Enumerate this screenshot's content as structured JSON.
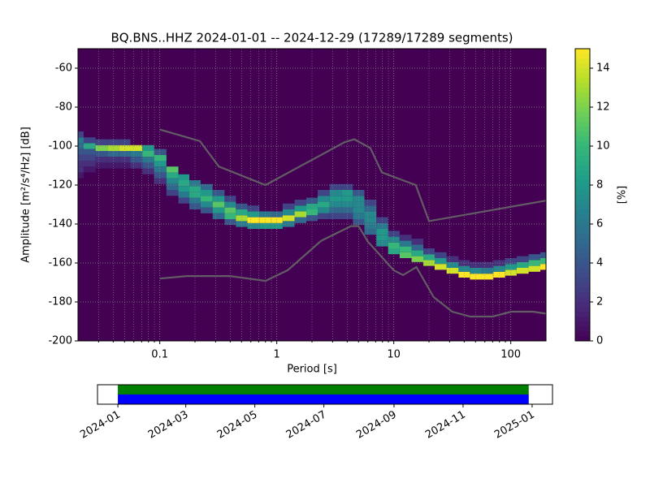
{
  "chart_data": [
    {
      "type": "ppsd",
      "title": "BQ.BNS..HHZ   2024-01-01 -- 2024-12-29  (17289/17289 segments)",
      "x_label": "Period [s]",
      "y_label": "Amplitude [m²/s⁴/Hz] [dB]",
      "xlim": [
        0.02,
        200
      ],
      "log_x": true,
      "xticks": [
        0.1,
        1,
        10,
        100
      ],
      "ylim": [
        -200,
        -50
      ],
      "yticks": [
        -200,
        -180,
        -160,
        -140,
        -120,
        -100,
        -80,
        -60
      ],
      "grid": true,
      "minor_grid": true,
      "colorbar": {
        "label": "[%]",
        "lim": [
          0,
          15
        ],
        "ticks": [
          0,
          2,
          4,
          6,
          8,
          10,
          12,
          14
        ],
        "colormap": "viridis"
      },
      "columns": [
        {
          "period": 0.02,
          "db": [
            -115,
            -112,
            -109,
            -106,
            -103,
            -100,
            -97,
            -94
          ],
          "percent": [
            1,
            2,
            2,
            3,
            4,
            5,
            6,
            3
          ]
        },
        {
          "period": 0.025,
          "db": [
            -112,
            -109,
            -106,
            -103,
            -100,
            -97
          ],
          "percent": [
            1,
            2,
            3,
            4,
            9,
            3
          ]
        },
        {
          "period": 0.032,
          "db": [
            -110,
            -107,
            -104,
            -101,
            -98
          ],
          "percent": [
            1,
            2,
            4,
            12,
            3
          ]
        },
        {
          "period": 0.04,
          "db": [
            -110,
            -107,
            -104,
            -101,
            -98
          ],
          "percent": [
            1,
            2,
            5,
            13,
            3
          ]
        },
        {
          "period": 0.05,
          "db": [
            -110,
            -107,
            -104,
            -101,
            -98
          ],
          "percent": [
            1,
            2,
            5,
            14,
            3
          ]
        },
        {
          "period": 0.063,
          "db": [
            -110,
            -107,
            -104,
            -101
          ],
          "percent": [
            2,
            4,
            6,
            14
          ]
        },
        {
          "period": 0.08,
          "db": [
            -113,
            -110,
            -107,
            -104,
            -101
          ],
          "percent": [
            2,
            4,
            6,
            10,
            8
          ]
        },
        {
          "period": 0.1,
          "db": [
            -118,
            -115,
            -112,
            -109,
            -106,
            -103
          ],
          "percent": [
            2,
            4,
            6,
            8,
            10,
            4
          ]
        },
        {
          "period": 0.13,
          "db": [
            -124,
            -121,
            -118,
            -115,
            -112
          ],
          "percent": [
            3,
            5,
            7,
            9,
            11
          ]
        },
        {
          "period": 0.16,
          "db": [
            -128,
            -125,
            -122,
            -119,
            -116
          ],
          "percent": [
            3,
            6,
            8,
            9,
            8
          ]
        },
        {
          "period": 0.2,
          "db": [
            -131,
            -128,
            -125,
            -122,
            -119
          ],
          "percent": [
            4,
            6,
            9,
            9,
            6
          ]
        },
        {
          "period": 0.25,
          "db": [
            -133,
            -130,
            -127,
            -124,
            -121
          ],
          "percent": [
            4,
            7,
            10,
            8,
            5
          ]
        },
        {
          "period": 0.32,
          "db": [
            -136,
            -133,
            -130,
            -127,
            -124
          ],
          "percent": [
            5,
            8,
            11,
            8,
            4
          ]
        },
        {
          "period": 0.4,
          "db": [
            -139,
            -136,
            -133,
            -130,
            -127
          ],
          "percent": [
            4,
            10,
            11,
            7,
            3
          ]
        },
        {
          "period": 0.5,
          "db": [
            -140,
            -137,
            -134,
            -131
          ],
          "percent": [
            6,
            13,
            9,
            4
          ]
        },
        {
          "period": 0.63,
          "db": [
            -141,
            -138,
            -135,
            -132
          ],
          "percent": [
            7,
            15,
            8,
            3
          ]
        },
        {
          "period": 0.8,
          "db": [
            -141,
            -138,
            -135
          ],
          "percent": [
            8,
            15,
            6
          ]
        },
        {
          "period": 1.0,
          "db": [
            -141,
            -138,
            -135
          ],
          "percent": [
            8,
            15,
            5
          ]
        },
        {
          "period": 1.26,
          "db": [
            -140,
            -137,
            -134,
            -131
          ],
          "percent": [
            6,
            14,
            7,
            3
          ]
        },
        {
          "period": 1.6,
          "db": [
            -138,
            -135,
            -132,
            -129
          ],
          "percent": [
            5,
            13,
            8,
            3
          ]
        },
        {
          "period": 2.0,
          "db": [
            -137,
            -134,
            -131,
            -128
          ],
          "percent": [
            4,
            10,
            9,
            4
          ]
        },
        {
          "period": 2.5,
          "db": [
            -136,
            -133,
            -130,
            -127,
            -124
          ],
          "percent": [
            3,
            7,
            9,
            7,
            3
          ]
        },
        {
          "period": 3.2,
          "db": [
            -136,
            -133,
            -130,
            -127,
            -124,
            -121
          ],
          "percent": [
            3,
            5,
            7,
            8,
            7,
            3
          ]
        },
        {
          "period": 4.0,
          "db": [
            -136,
            -133,
            -130,
            -127,
            -124,
            -121
          ],
          "percent": [
            3,
            5,
            7,
            8,
            8,
            3
          ]
        },
        {
          "period": 5.0,
          "db": [
            -139,
            -136,
            -133,
            -130,
            -127,
            -124
          ],
          "percent": [
            4,
            6,
            7,
            7,
            7,
            4
          ]
        },
        {
          "period": 6.3,
          "db": [
            -144,
            -141,
            -138,
            -135,
            -132,
            -129
          ],
          "percent": [
            5,
            6,
            7,
            7,
            5,
            3
          ]
        },
        {
          "period": 8.0,
          "db": [
            -150,
            -147,
            -144,
            -141,
            -138
          ],
          "percent": [
            7,
            8,
            8,
            6,
            3
          ]
        },
        {
          "period": 10,
          "db": [
            -154,
            -151,
            -148,
            -145
          ],
          "percent": [
            9,
            10,
            7,
            3
          ]
        },
        {
          "period": 12.6,
          "db": [
            -156,
            -153,
            -150,
            -147
          ],
          "percent": [
            11,
            10,
            6,
            2
          ]
        },
        {
          "period": 16,
          "db": [
            -158,
            -155,
            -152,
            -149
          ],
          "percent": [
            12,
            9,
            5,
            2
          ]
        },
        {
          "period": 20,
          "db": [
            -160,
            -157,
            -154
          ],
          "percent": [
            13,
            9,
            3
          ]
        },
        {
          "period": 25,
          "db": [
            -162,
            -159,
            -156
          ],
          "percent": [
            14,
            8,
            3
          ]
        },
        {
          "period": 32,
          "db": [
            -164,
            -161,
            -158
          ],
          "percent": [
            14,
            7,
            2
          ]
        },
        {
          "period": 40,
          "db": [
            -166,
            -163,
            -160
          ],
          "percent": [
            15,
            7,
            2
          ]
        },
        {
          "period": 50,
          "db": [
            -167,
            -164,
            -161
          ],
          "percent": [
            15,
            7,
            2
          ]
        },
        {
          "period": 63,
          "db": [
            -167,
            -164,
            -161
          ],
          "percent": [
            15,
            6,
            2
          ]
        },
        {
          "period": 80,
          "db": [
            -166,
            -163,
            -160
          ],
          "percent": [
            15,
            7,
            2
          ]
        },
        {
          "period": 100,
          "db": [
            -165,
            -162,
            -159
          ],
          "percent": [
            14,
            8,
            3
          ]
        },
        {
          "period": 126,
          "db": [
            -164,
            -161,
            -158
          ],
          "percent": [
            14,
            9,
            3
          ]
        },
        {
          "period": 160,
          "db": [
            -163,
            -160,
            -157
          ],
          "percent": [
            14,
            10,
            4
          ]
        },
        {
          "period": 200,
          "db": [
            -162,
            -159,
            -156
          ],
          "percent": [
            15,
            10,
            4
          ]
        }
      ],
      "series": [
        {
          "color": "#666666",
          "x": [
            0.1,
            0.22,
            0.32,
            0.8,
            3.8,
            4.6,
            6.3,
            7.9,
            15.4,
            20,
            200
          ],
          "values": [
            -91.5,
            -97.4,
            -110.5,
            -120,
            -98,
            -96.5,
            -101,
            -113.5,
            -120,
            -138.5,
            -128
          ]
        },
        {
          "color": "#666666",
          "x": [
            0.1,
            0.17,
            0.4,
            0.8,
            1.24,
            2.4,
            4.3,
            5,
            6,
            10,
            12,
            15.6,
            21.9,
            31.6,
            45,
            70,
            101,
            154,
            200
          ],
          "values": [
            -168,
            -166.7,
            -166.7,
            -169.2,
            -163.7,
            -148.6,
            -141.1,
            -141.1,
            -149,
            -163.8,
            -166.2,
            -162.1,
            -177.5,
            -185,
            -187.5,
            -187.5,
            -185,
            -185,
            -186
          ]
        }
      ]
    },
    {
      "type": "timeline",
      "xlim": [
        "2023-12-14",
        "2025-01-19"
      ],
      "xticks": [
        {
          "value": "2024-01-01",
          "label": "2024-01"
        },
        {
          "value": "2024-03-01",
          "label": "2024-03"
        },
        {
          "value": "2024-05-01",
          "label": "2024-05"
        },
        {
          "value": "2024-07-01",
          "label": "2024-07"
        },
        {
          "value": "2024-09-01",
          "label": "2024-09"
        },
        {
          "value": "2024-11-01",
          "label": "2024-11"
        },
        {
          "value": "2025-01-01",
          "label": "2025-01"
        }
      ],
      "bars": [
        {
          "start": "2024-01-01",
          "end": "2024-12-29",
          "color": "#008000"
        },
        {
          "start": "2024-01-01",
          "end": "2024-12-29",
          "color": "#0000ff"
        }
      ]
    }
  ]
}
